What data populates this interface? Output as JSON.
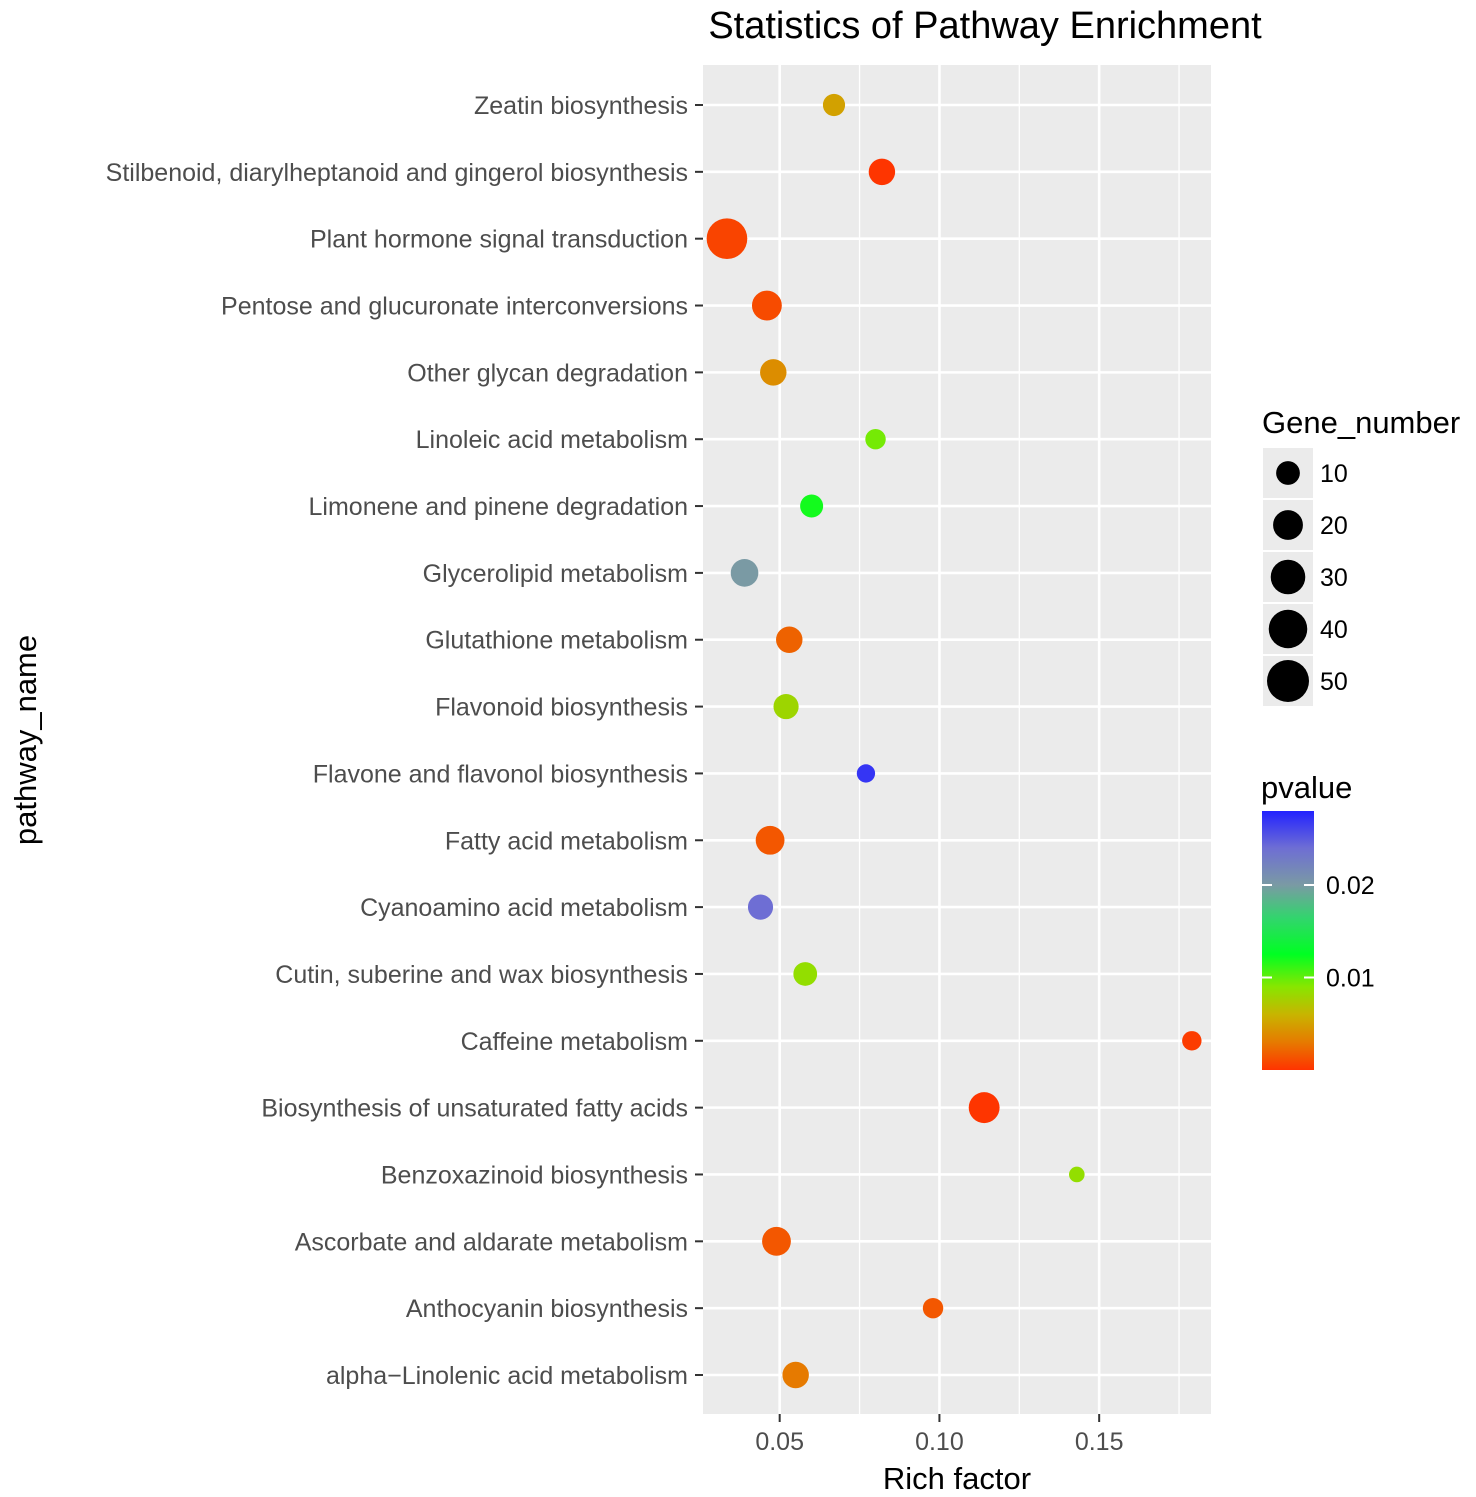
{
  "chart_data": {
    "type": "scatter",
    "title": "Statistics of Pathway Enrichment",
    "xlabel": "Rich factor",
    "ylabel": "pathway_name",
    "xlim": [
      0.026,
      0.185
    ],
    "xticks": [
      {
        "value": 0.05,
        "label": "0.05"
      },
      {
        "value": 0.1,
        "label": "0.10"
      },
      {
        "value": 0.15,
        "label": "0.15"
      }
    ],
    "grid": true,
    "categories": [
      "Zeatin biosynthesis",
      "Stilbenoid, diarylheptanoid and gingerol biosynthesis",
      "Plant hormone signal transduction",
      "Pentose and glucuronate interconversions",
      "Other glycan degradation",
      "Linoleic acid metabolism",
      "Limonene and pinene degradation",
      "Glycerolipid metabolism",
      "Glutathione metabolism",
      "Flavonoid biosynthesis",
      "Flavone and flavonol biosynthesis",
      "Fatty acid metabolism",
      "Cyanoamino acid metabolism",
      "Cutin, suberine and wax biosynthesis",
      "Caffeine metabolism",
      "Biosynthesis of unsaturated fatty acids",
      "Benzoxazinoid biosynthesis",
      "Ascorbate and aldarate metabolism",
      "Anthocyanin biosynthesis",
      "alpha−Linolenic acid metabolism"
    ],
    "points": [
      {
        "pathway": "Zeatin biosynthesis",
        "rich_factor": 0.067,
        "gene_number": 8,
        "pvalue": 0.005
      },
      {
        "pathway": "Stilbenoid, diarylheptanoid and gingerol biosynthesis",
        "rich_factor": 0.082,
        "gene_number": 14,
        "pvalue": 0.0001
      },
      {
        "pathway": "Plant hormone signal transduction",
        "rich_factor": 0.0335,
        "gene_number": 46,
        "pvalue": 0.0007
      },
      {
        "pathway": "Pentose and glucuronate interconversions",
        "rich_factor": 0.046,
        "gene_number": 20,
        "pvalue": 0.001
      },
      {
        "pathway": "Other glycan degradation",
        "rich_factor": 0.048,
        "gene_number": 14,
        "pvalue": 0.004
      },
      {
        "pathway": "Linoleic acid metabolism",
        "rich_factor": 0.08,
        "gene_number": 6,
        "pvalue": 0.0095
      },
      {
        "pathway": "Limonene and pinene degradation",
        "rich_factor": 0.06,
        "gene_number": 9,
        "pvalue": 0.012
      },
      {
        "pathway": "Glycerolipid metabolism",
        "rich_factor": 0.039,
        "gene_number": 16,
        "pvalue": 0.02
      },
      {
        "pathway": "Glutathione metabolism",
        "rich_factor": 0.053,
        "gene_number": 14,
        "pvalue": 0.002
      },
      {
        "pathway": "Flavonoid biosynthesis",
        "rich_factor": 0.052,
        "gene_number": 12,
        "pvalue": 0.008
      },
      {
        "pathway": "Flavone and flavonol biosynthesis",
        "rich_factor": 0.077,
        "gene_number": 4,
        "pvalue": 0.027
      },
      {
        "pathway": "Fatty acid metabolism",
        "rich_factor": 0.047,
        "gene_number": 18,
        "pvalue": 0.0015
      },
      {
        "pathway": "Cyanoamino acid metabolism",
        "rich_factor": 0.044,
        "gene_number": 12,
        "pvalue": 0.024
      },
      {
        "pathway": "Cutin, suberine and wax biosynthesis",
        "rich_factor": 0.058,
        "gene_number": 10,
        "pvalue": 0.0085
      },
      {
        "pathway": "Caffeine metabolism",
        "rich_factor": 0.179,
        "gene_number": 5,
        "pvalue": 0.0004
      },
      {
        "pathway": "Biosynthesis of unsaturated fatty acids",
        "rich_factor": 0.114,
        "gene_number": 22,
        "pvalue": 0.0001
      },
      {
        "pathway": "Benzoxazinoid biosynthesis",
        "rich_factor": 0.143,
        "gene_number": 2,
        "pvalue": 0.0085
      },
      {
        "pathway": "Ascorbate and aldarate metabolism",
        "rich_factor": 0.049,
        "gene_number": 18,
        "pvalue": 0.0015
      },
      {
        "pathway": "Anthocyanin biosynthesis",
        "rich_factor": 0.098,
        "gene_number": 6,
        "pvalue": 0.0015
      },
      {
        "pathway": "alpha−Linolenic acid metabolism",
        "rich_factor": 0.055,
        "gene_number": 14,
        "pvalue": 0.003
      }
    ],
    "size_legend": {
      "title": "Gene_number",
      "values": [
        10,
        20,
        30,
        40,
        50
      ],
      "labels": [
        "10",
        "20",
        "30",
        "40",
        "50"
      ]
    },
    "color_legend": {
      "title": "pvalue",
      "range": [
        0.0,
        0.028
      ],
      "ticks": [
        {
          "value": 0.02,
          "label": "0.02"
        },
        {
          "value": 0.01,
          "label": "0.01"
        }
      ],
      "gradient": [
        {
          "value": 0.0,
          "color": "#ff3300"
        },
        {
          "value": 0.003,
          "color": "#e67a00"
        },
        {
          "value": 0.006,
          "color": "#c8b400"
        },
        {
          "value": 0.009,
          "color": "#88e600"
        },
        {
          "value": 0.0125,
          "color": "#00ff22"
        },
        {
          "value": 0.0165,
          "color": "#33d46e"
        },
        {
          "value": 0.02,
          "color": "#7a9aa4"
        },
        {
          "value": 0.024,
          "color": "#6e6ed4"
        },
        {
          "value": 0.028,
          "color": "#2222ff"
        }
      ]
    },
    "colors": {
      "panel": "#ebebeb",
      "grid_major": "#ffffff",
      "tick": "#333333"
    }
  }
}
